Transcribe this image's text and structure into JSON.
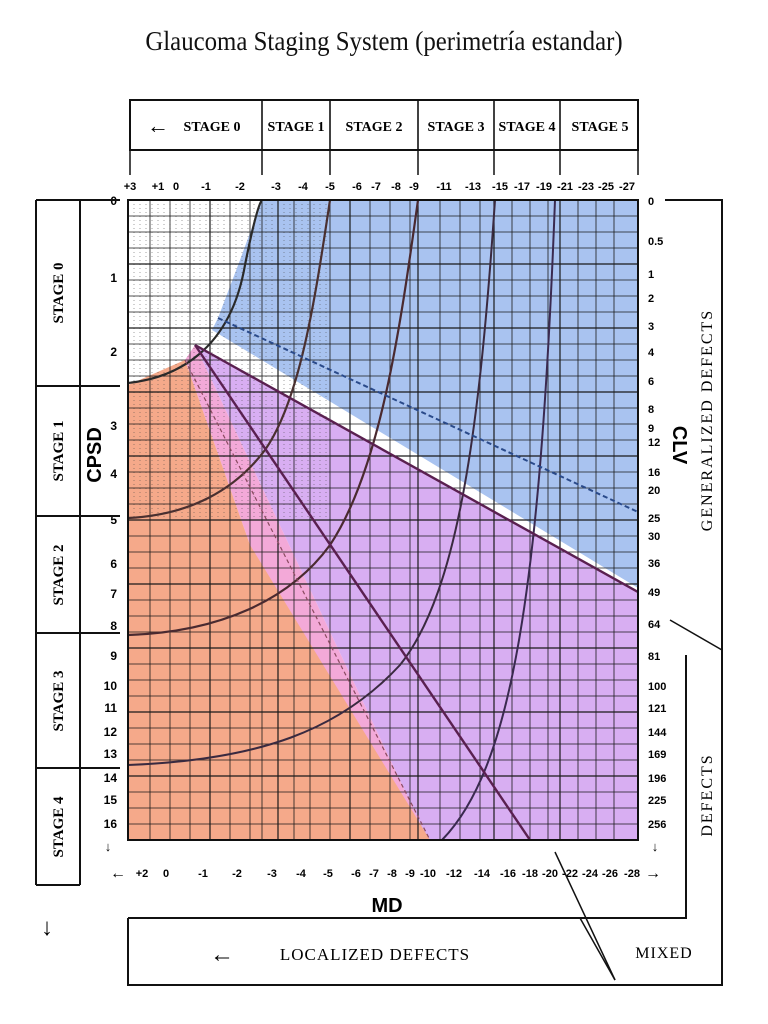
{
  "title": "Glaucoma Staging System (perimetría estandar)",
  "top_stages": [
    "STAGE 0",
    "STAGE 1",
    "STAGE 2",
    "STAGE 3",
    "STAGE 4",
    "STAGE 5"
  ],
  "top_stage_arrow": "←",
  "left_stages": [
    "STAGE 0",
    "STAGE 1",
    "STAGE 2",
    "STAGE 3",
    "STAGE 4"
  ],
  "md_ticks_top": [
    "+3",
    "+1",
    "0",
    "-1",
    "-2",
    "-3",
    "-4",
    "-5",
    "-6",
    "-7",
    "-8",
    "-9",
    "-11",
    "-13",
    "-15",
    "-17",
    "-19",
    "-21",
    "-23",
    "-25",
    "-27"
  ],
  "md_ticks_bottom": [
    "+2",
    "0",
    "-1",
    "-2",
    "-3",
    "-4",
    "-5",
    "-6",
    "-7",
    "-8",
    "-9",
    "-10",
    "-12",
    "-14",
    "-16",
    "-18",
    "-20",
    "-22",
    "-24",
    "-26",
    "-28"
  ],
  "bottom_arrow_left": "←",
  "bottom_arrow_right": "→",
  "cpsd_ticks": [
    "0",
    "1",
    "2",
    "3",
    "4",
    "5",
    "6",
    "7",
    "8",
    "9",
    "10",
    "11",
    "12",
    "13",
    "14",
    "15",
    "16"
  ],
  "cpsd_down_arrow": "↓",
  "clv_ticks": [
    "0",
    "0.5",
    "1",
    "2",
    "3",
    "4",
    "6",
    "8",
    "9",
    "12",
    "16",
    "20",
    "25",
    "30",
    "36",
    "49",
    "64",
    "81",
    "100",
    "121",
    "144",
    "169",
    "196",
    "225",
    "256"
  ],
  "clv_down_arrow": "↓",
  "axis_labels": {
    "cpsd": "CPSD",
    "clv": "CLV",
    "md": "MD"
  },
  "region_labels": {
    "generalized": "GENERALIZED DEFECTS",
    "defects": "DEFECTS",
    "localized": "LOCALIZED DEFECTS",
    "mixed": "MIXED"
  },
  "colors": {
    "blue_region": "#a9c3f0",
    "purple_region": "#d8aef2",
    "pink_region": "#f3a9d8",
    "orange_region": "#f5a98a",
    "grid": "#1a1a1a",
    "curve": "#3a3a6a"
  }
}
